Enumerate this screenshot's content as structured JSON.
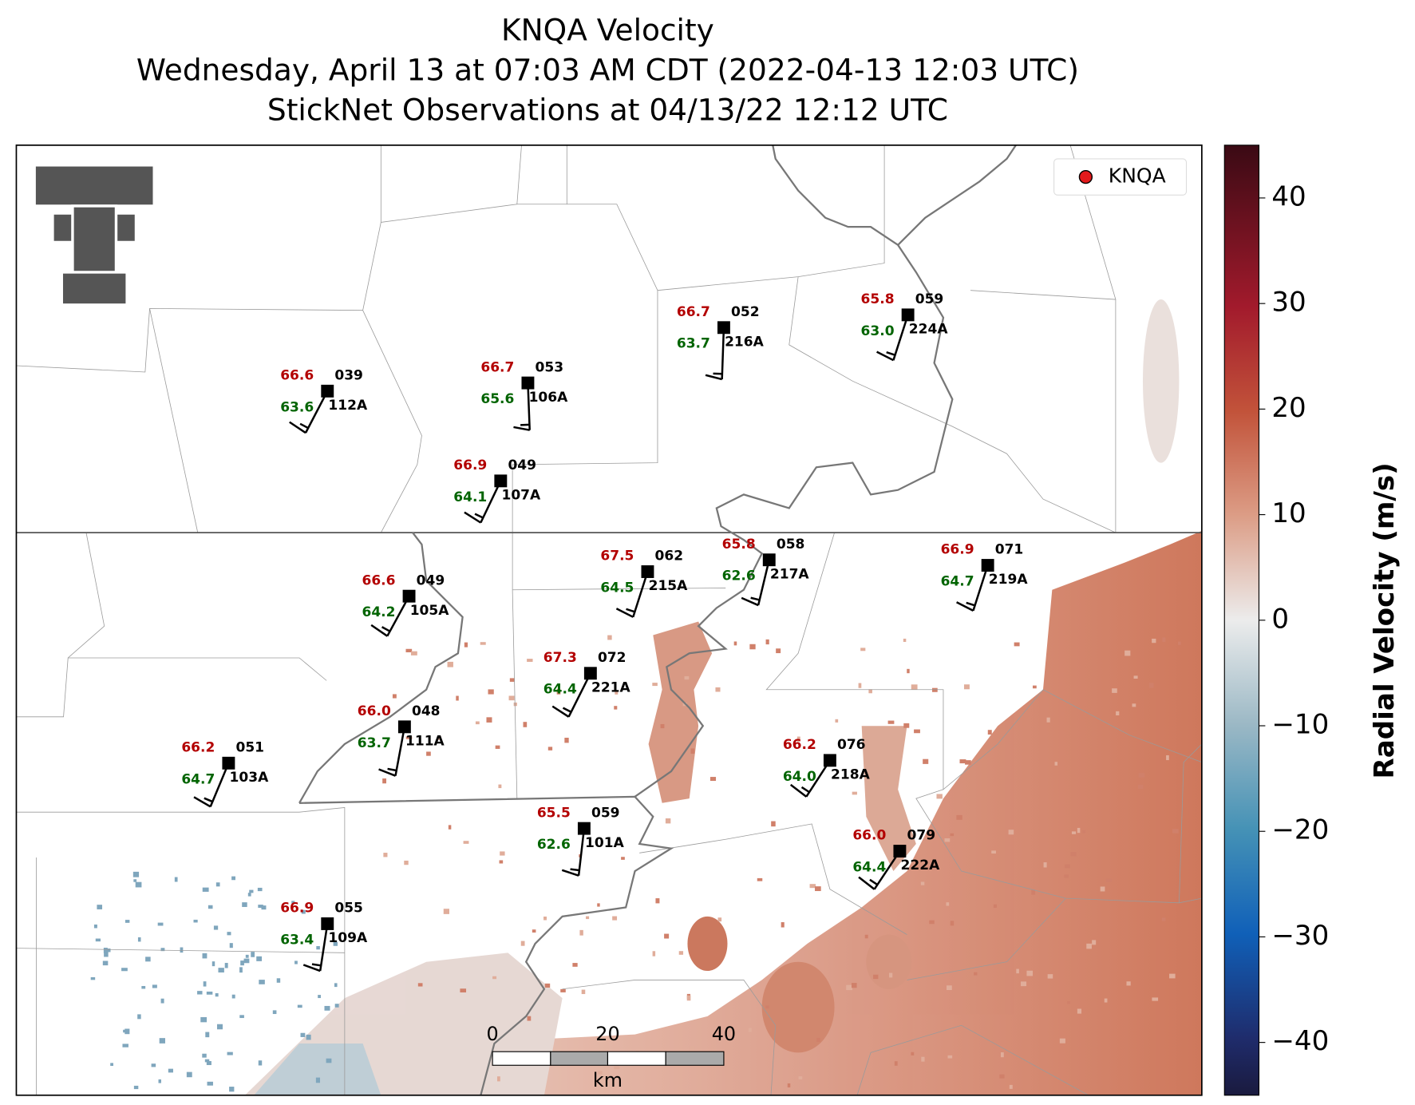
{
  "title": [
    "KNQA Velocity",
    "Wednesday, April 13 at 07:03 AM CDT (2022-04-13 12:03 UTC)",
    "StickNet Observations at 04/13/22 12:12 UTC"
  ],
  "legend": {
    "label": "KNQA",
    "color": "#e31a1c"
  },
  "colorbar": {
    "label": "Radial Velocity (m/s)",
    "ylim": [
      -45,
      45
    ],
    "yticks": [
      40,
      30,
      20,
      10,
      0,
      {
        "value": -10,
        "label": "−10"
      },
      {
        "value": -20,
        "label": "−20"
      },
      {
        "value": -30,
        "label": "−30"
      },
      {
        "value": -40,
        "label": "−40"
      }
    ]
  },
  "scale_bar": {
    "ticks": [
      "0",
      "20",
      "40"
    ],
    "unit": "km"
  },
  "stations": [
    {
      "temperature": "66.6",
      "dewpoint": "63.6",
      "pressure": "039",
      "id": "112A"
    },
    {
      "temperature": "66.7",
      "dewpoint": "65.6",
      "pressure": "053",
      "id": "106A"
    },
    {
      "temperature": "66.7",
      "dewpoint": "63.7",
      "pressure": "052",
      "id": "216A"
    },
    {
      "temperature": "65.8",
      "dewpoint": "63.0",
      "pressure": "059",
      "id": "224A"
    },
    {
      "temperature": "66.9",
      "dewpoint": "64.1",
      "pressure": "049",
      "id": "107A"
    },
    {
      "temperature": "67.5",
      "dewpoint": "64.5",
      "pressure": "062",
      "id": "215A"
    },
    {
      "temperature": "65.8",
      "dewpoint": "62.6",
      "pressure": "058",
      "id": "217A"
    },
    {
      "temperature": "66.9",
      "dewpoint": "64.7",
      "pressure": "071",
      "id": "219A"
    },
    {
      "temperature": "66.6",
      "dewpoint": "64.2",
      "pressure": "049",
      "id": "105A"
    },
    {
      "temperature": "67.3",
      "dewpoint": "64.4",
      "pressure": "072",
      "id": "221A"
    },
    {
      "temperature": "66.0",
      "dewpoint": "63.7",
      "pressure": "048",
      "id": "111A"
    },
    {
      "temperature": "66.2",
      "dewpoint": "64.7",
      "pressure": "051",
      "id": "103A"
    },
    {
      "temperature": "66.2",
      "dewpoint": "64.0",
      "pressure": "076",
      "id": "218A"
    },
    {
      "temperature": "65.5",
      "dewpoint": "62.6",
      "pressure": "059",
      "id": "101A"
    },
    {
      "temperature": "66.0",
      "dewpoint": "64.4",
      "pressure": "079",
      "id": "222A"
    },
    {
      "temperature": "66.9",
      "dewpoint": "63.4",
      "pressure": "055",
      "id": "109A"
    }
  ]
}
